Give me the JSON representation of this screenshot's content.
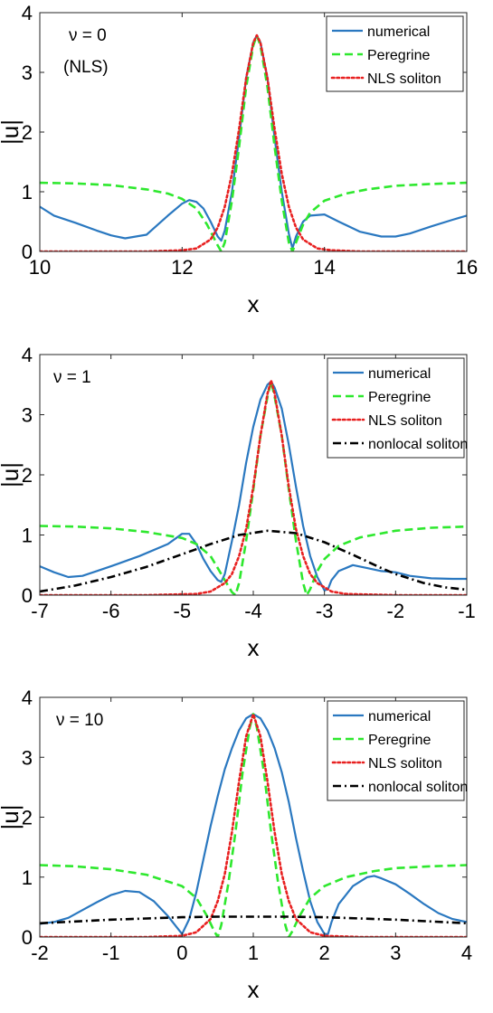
{
  "colors": {
    "numerical": "#2a78c0",
    "peregrine": "#2ee82e",
    "nls": "#e82020",
    "nonlocal": "#000000"
  },
  "chart_data": [
    {
      "type": "line",
      "annotation": [
        "ν = 0",
        "(NLS)"
      ],
      "xlabel": "x",
      "ylabel": "|u|",
      "xlim": [
        10,
        16
      ],
      "ylim": [
        0,
        4
      ],
      "xticks": [
        10,
        12,
        14,
        16
      ],
      "yticks": [
        0,
        1,
        2,
        3,
        4
      ],
      "legend_position": "top-right",
      "series": [
        {
          "name": "numerical",
          "style": "solid",
          "color_key": "numerical",
          "x": [
            10.0,
            10.2,
            10.5,
            10.8,
            11.0,
            11.2,
            11.5,
            11.8,
            12.0,
            12.1,
            12.2,
            12.3,
            12.4,
            12.5,
            12.55,
            12.6,
            12.7,
            12.8,
            12.9,
            13.0,
            13.05,
            13.1,
            13.2,
            13.3,
            13.4,
            13.5,
            13.55,
            13.6,
            13.7,
            13.8,
            14.0,
            14.2,
            14.5,
            14.8,
            15.0,
            15.2,
            15.5,
            15.8,
            16.0
          ],
          "y": [
            0.75,
            0.6,
            0.48,
            0.35,
            0.27,
            0.22,
            0.28,
            0.6,
            0.8,
            0.86,
            0.83,
            0.72,
            0.5,
            0.25,
            0.18,
            0.35,
            1.0,
            1.9,
            2.9,
            3.5,
            3.62,
            3.5,
            2.9,
            1.9,
            1.0,
            0.3,
            0.05,
            0.25,
            0.5,
            0.6,
            0.62,
            0.5,
            0.33,
            0.25,
            0.25,
            0.3,
            0.42,
            0.53,
            0.6
          ]
        },
        {
          "name": "Peregrine",
          "style": "dashed",
          "color_key": "peregrine",
          "x": [
            10.0,
            10.5,
            11.0,
            11.5,
            11.8,
            12.0,
            12.2,
            12.35,
            12.5,
            12.55,
            12.6,
            12.7,
            12.8,
            12.9,
            13.0,
            13.05,
            13.1,
            13.2,
            13.3,
            13.4,
            13.5,
            13.55,
            13.6,
            13.7,
            13.8,
            14.0,
            14.3,
            14.6,
            15.0,
            15.5,
            16.0
          ],
          "y": [
            1.15,
            1.14,
            1.11,
            1.04,
            0.97,
            0.88,
            0.72,
            0.45,
            0.1,
            0.0,
            0.15,
            0.85,
            1.75,
            2.75,
            3.45,
            3.62,
            3.45,
            2.75,
            1.75,
            0.85,
            0.15,
            0.0,
            0.15,
            0.45,
            0.65,
            0.85,
            0.97,
            1.04,
            1.1,
            1.13,
            1.15
          ]
        },
        {
          "name": "NLS soliton",
          "style": "dotted",
          "color_key": "nls",
          "x": [
            10.0,
            11.5,
            12.0,
            12.2,
            12.4,
            12.5,
            12.6,
            12.7,
            12.8,
            12.9,
            13.0,
            13.05,
            13.1,
            13.2,
            13.3,
            13.4,
            13.5,
            13.6,
            13.7,
            13.9,
            14.1,
            14.5,
            16.0
          ],
          "y": [
            0.0,
            0.0,
            0.02,
            0.05,
            0.2,
            0.4,
            0.75,
            1.3,
            2.05,
            2.9,
            3.5,
            3.62,
            3.5,
            2.9,
            2.05,
            1.3,
            0.75,
            0.4,
            0.2,
            0.05,
            0.02,
            0.0,
            0.0
          ]
        }
      ]
    },
    {
      "type": "line",
      "annotation": [
        "ν = 1"
      ],
      "xlabel": "x",
      "ylabel": "|u|",
      "xlim": [
        -7,
        -1
      ],
      "ylim": [
        0,
        4
      ],
      "xticks": [
        -7,
        -6,
        -5,
        -4,
        -3,
        -2,
        -1
      ],
      "yticks": [
        0,
        1,
        2,
        3,
        4
      ],
      "legend_position": "top-right",
      "series": [
        {
          "name": "numerical",
          "style": "solid",
          "color_key": "numerical",
          "x": [
            -7.0,
            -6.8,
            -6.6,
            -6.4,
            -6.2,
            -6.0,
            -5.6,
            -5.2,
            -5.0,
            -4.9,
            -4.8,
            -4.7,
            -4.6,
            -4.5,
            -4.45,
            -4.4,
            -4.3,
            -4.2,
            -4.1,
            -4.0,
            -3.9,
            -3.8,
            -3.75,
            -3.7,
            -3.6,
            -3.5,
            -3.4,
            -3.3,
            -3.2,
            -3.1,
            -3.0,
            -2.95,
            -2.9,
            -2.8,
            -2.6,
            -2.4,
            -2.2,
            -2.0,
            -1.8,
            -1.5,
            -1.2,
            -1.0
          ],
          "y": [
            0.48,
            0.38,
            0.3,
            0.32,
            0.4,
            0.48,
            0.65,
            0.85,
            1.02,
            1.02,
            0.85,
            0.6,
            0.4,
            0.25,
            0.22,
            0.35,
            0.9,
            1.5,
            2.2,
            2.8,
            3.25,
            3.5,
            3.55,
            3.45,
            3.1,
            2.5,
            1.8,
            1.15,
            0.65,
            0.3,
            0.08,
            0.1,
            0.25,
            0.4,
            0.5,
            0.45,
            0.4,
            0.38,
            0.32,
            0.28,
            0.27,
            0.27
          ]
        },
        {
          "name": "Peregrine",
          "style": "dashed",
          "color_key": "peregrine",
          "x": [
            -7.0,
            -6.5,
            -6.0,
            -5.5,
            -5.0,
            -4.8,
            -4.6,
            -4.5,
            -4.4,
            -4.3,
            -4.25,
            -4.2,
            -4.1,
            -4.0,
            -3.9,
            -3.8,
            -3.75,
            -3.7,
            -3.6,
            -3.5,
            -3.4,
            -3.3,
            -3.25,
            -3.2,
            -3.1,
            -3.0,
            -2.8,
            -2.5,
            -2.0,
            -1.5,
            -1.0
          ],
          "y": [
            1.15,
            1.14,
            1.11,
            1.05,
            0.95,
            0.85,
            0.65,
            0.45,
            0.25,
            0.05,
            0.0,
            0.2,
            0.9,
            1.75,
            2.65,
            3.3,
            3.55,
            3.3,
            2.65,
            1.75,
            0.9,
            0.2,
            0.0,
            0.1,
            0.4,
            0.6,
            0.82,
            0.96,
            1.07,
            1.12,
            1.14
          ]
        },
        {
          "name": "NLS soliton",
          "style": "dotted",
          "color_key": "nls",
          "x": [
            -7.0,
            -5.5,
            -4.8,
            -4.6,
            -4.4,
            -4.3,
            -4.2,
            -4.1,
            -4.0,
            -3.9,
            -3.8,
            -3.75,
            -3.7,
            -3.6,
            -3.5,
            -3.4,
            -3.3,
            -3.2,
            -3.1,
            -2.9,
            -2.7,
            -2.0,
            -1.0
          ],
          "y": [
            0.0,
            0.0,
            0.02,
            0.06,
            0.2,
            0.35,
            0.65,
            1.1,
            1.8,
            2.65,
            3.35,
            3.57,
            3.35,
            2.65,
            1.8,
            1.1,
            0.65,
            0.35,
            0.2,
            0.06,
            0.02,
            0.0,
            0.0
          ]
        },
        {
          "name": "nonlocal soliton",
          "style": "dashdot",
          "color_key": "nonlocal",
          "x": [
            -7.0,
            -6.5,
            -6.0,
            -5.5,
            -5.0,
            -4.6,
            -4.2,
            -3.8,
            -3.4,
            -3.0,
            -2.6,
            -2.2,
            -2.0,
            -1.6,
            -1.3,
            -1.0
          ],
          "y": [
            0.06,
            0.16,
            0.3,
            0.47,
            0.68,
            0.85,
            1.0,
            1.07,
            1.03,
            0.88,
            0.67,
            0.45,
            0.35,
            0.2,
            0.13,
            0.09
          ]
        }
      ]
    },
    {
      "type": "line",
      "annotation": [
        "ν = 10"
      ],
      "xlabel": "x",
      "ylabel": "|u|",
      "xlim": [
        -2,
        4
      ],
      "ylim": [
        0,
        4
      ],
      "xticks": [
        -2,
        -1,
        0,
        1,
        2,
        3,
        4
      ],
      "yticks": [
        0,
        1,
        2,
        3,
        4
      ],
      "legend_position": "top-right",
      "series": [
        {
          "name": "numerical",
          "style": "solid",
          "color_key": "numerical",
          "x": [
            -2.0,
            -1.8,
            -1.6,
            -1.4,
            -1.2,
            -1.0,
            -0.8,
            -0.6,
            -0.4,
            -0.2,
            -0.1,
            0.0,
            0.1,
            0.2,
            0.3,
            0.4,
            0.5,
            0.6,
            0.7,
            0.8,
            0.9,
            1.0,
            1.1,
            1.2,
            1.3,
            1.4,
            1.5,
            1.6,
            1.7,
            1.8,
            1.9,
            2.0,
            2.05,
            2.1,
            2.2,
            2.4,
            2.6,
            2.7,
            2.8,
            3.0,
            3.2,
            3.4,
            3.6,
            3.8,
            4.0
          ],
          "y": [
            0.22,
            0.25,
            0.32,
            0.45,
            0.58,
            0.7,
            0.77,
            0.75,
            0.6,
            0.35,
            0.2,
            0.05,
            0.3,
            0.75,
            1.3,
            1.85,
            2.35,
            2.8,
            3.15,
            3.45,
            3.65,
            3.72,
            3.65,
            3.45,
            3.15,
            2.75,
            2.25,
            1.65,
            1.1,
            0.6,
            0.25,
            0.05,
            0.05,
            0.25,
            0.55,
            0.85,
            1.0,
            1.02,
            0.98,
            0.88,
            0.72,
            0.55,
            0.4,
            0.3,
            0.25
          ]
        },
        {
          "name": "Peregrine",
          "style": "dashed",
          "color_key": "peregrine",
          "x": [
            -2.0,
            -1.5,
            -1.0,
            -0.5,
            0.0,
            0.2,
            0.35,
            0.45,
            0.5,
            0.55,
            0.65,
            0.75,
            0.85,
            0.95,
            1.0,
            1.05,
            1.15,
            1.25,
            1.35,
            1.45,
            1.5,
            1.55,
            1.65,
            1.8,
            2.0,
            2.3,
            2.7,
            3.0,
            3.5,
            4.0
          ],
          "y": [
            1.2,
            1.18,
            1.13,
            1.04,
            0.85,
            0.65,
            0.35,
            0.1,
            0.0,
            0.2,
            0.9,
            1.75,
            2.75,
            3.5,
            3.72,
            3.5,
            2.75,
            1.75,
            0.9,
            0.2,
            0.0,
            0.1,
            0.35,
            0.65,
            0.85,
            1.0,
            1.1,
            1.15,
            1.18,
            1.2
          ]
        },
        {
          "name": "NLS soliton",
          "style": "dotted",
          "color_key": "nls",
          "x": [
            -2.0,
            -0.5,
            0.0,
            0.2,
            0.4,
            0.5,
            0.6,
            0.7,
            0.8,
            0.9,
            1.0,
            1.1,
            1.2,
            1.3,
            1.4,
            1.5,
            1.6,
            1.8,
            2.0,
            2.5,
            4.0
          ],
          "y": [
            0.0,
            0.0,
            0.02,
            0.08,
            0.3,
            0.6,
            1.05,
            1.75,
            2.6,
            3.35,
            3.72,
            3.35,
            2.6,
            1.75,
            1.05,
            0.6,
            0.3,
            0.08,
            0.02,
            0.0,
            0.0
          ]
        },
        {
          "name": "nonlocal soliton",
          "style": "dashdot",
          "color_key": "nonlocal",
          "x": [
            -2.0,
            -1.5,
            -1.0,
            -0.5,
            0.0,
            0.5,
            1.0,
            1.5,
            2.0,
            2.5,
            3.0,
            3.5,
            4.0
          ],
          "y": [
            0.23,
            0.26,
            0.29,
            0.31,
            0.33,
            0.34,
            0.34,
            0.34,
            0.33,
            0.31,
            0.29,
            0.26,
            0.23
          ]
        }
      ]
    }
  ]
}
